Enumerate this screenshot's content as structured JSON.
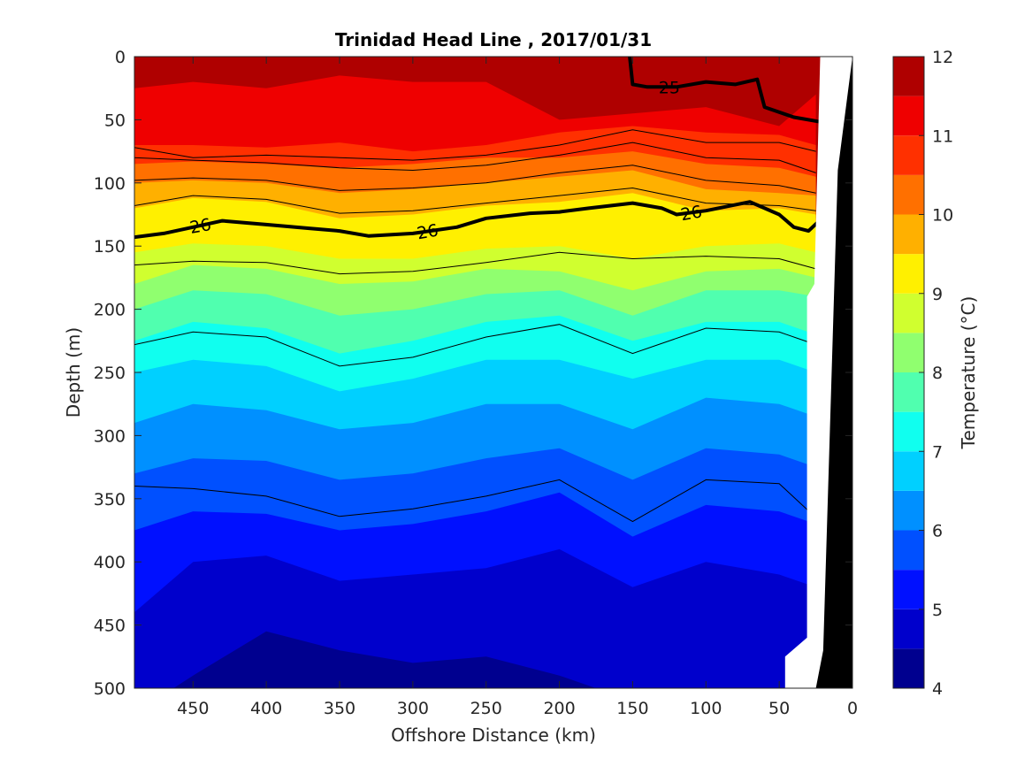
{
  "chart_data": {
    "type": "heatmap",
    "subtype": "filled-contour depth section",
    "title": "Trinidad Head Line , 2017/01/31",
    "xlabel": "Offshore Distance (km)",
    "ylabel": "Depth (m)",
    "xlim": [
      490,
      0
    ],
    "x_reversed": true,
    "ylim": [
      0,
      500
    ],
    "y_reversed": true,
    "x_ticks": [
      450,
      400,
      350,
      300,
      250,
      200,
      150,
      100,
      50,
      0
    ],
    "y_ticks": [
      0,
      50,
      100,
      150,
      200,
      250,
      300,
      350,
      400,
      450,
      500
    ],
    "colorbar": {
      "label": "Temperature (°C)",
      "range": [
        4,
        12
      ],
      "ticks": [
        4,
        5,
        6,
        7,
        8,
        9,
        10,
        11,
        12
      ],
      "levels": [
        4,
        4.5,
        5,
        5.5,
        6,
        6.5,
        7,
        7.5,
        8,
        8.5,
        9,
        9.5,
        10,
        10.5,
        11,
        11.5,
        12
      ],
      "colors": [
        "#00008f",
        "#0000cc",
        "#0010ff",
        "#0050ff",
        "#0090ff",
        "#00d0ff",
        "#10ffef",
        "#50ffaf",
        "#90ff6f",
        "#d0ff2f",
        "#fff000",
        "#ffb000",
        "#ff7000",
        "#ff3000",
        "#ef0000",
        "#af0000"
      ]
    },
    "isotherm_boundaries_depth_m": {
      "x_km": [
        490,
        450,
        400,
        350,
        300,
        250,
        200,
        150,
        100,
        50,
        25
      ],
      "t11.5": [
        25,
        20,
        25,
        15,
        20,
        20,
        50,
        45,
        40,
        55,
        30
      ],
      "t11": [
        70,
        70,
        72,
        68,
        75,
        70,
        60,
        55,
        60,
        62,
        70
      ],
      "t10.5": [
        85,
        83,
        85,
        88,
        85,
        80,
        80,
        75,
        85,
        88,
        95
      ],
      "t10": [
        100,
        98,
        100,
        108,
        105,
        100,
        95,
        90,
        105,
        108,
        110
      ],
      "t9.5": [
        120,
        112,
        115,
        128,
        125,
        118,
        115,
        108,
        122,
        120,
        125
      ],
      "t9": [
        155,
        148,
        150,
        160,
        160,
        152,
        150,
        160,
        150,
        148,
        155
      ],
      "t8.5": [
        180,
        165,
        168,
        180,
        178,
        168,
        170,
        185,
        170,
        168,
        175
      ],
      "t8": [
        200,
        185,
        188,
        205,
        200,
        188,
        185,
        205,
        185,
        185,
        190
      ],
      "t7.5": [
        225,
        210,
        215,
        235,
        225,
        210,
        205,
        225,
        210,
        210,
        220
      ],
      "t7": [
        250,
        240,
        245,
        265,
        255,
        240,
        240,
        255,
        240,
        240,
        250
      ],
      "t6.5": [
        290,
        275,
        280,
        295,
        290,
        275,
        275,
        295,
        270,
        275,
        285
      ],
      "t6": [
        330,
        318,
        320,
        335,
        330,
        318,
        310,
        335,
        310,
        315,
        325
      ],
      "t5.5": [
        375,
        360,
        362,
        375,
        370,
        360,
        345,
        380,
        355,
        360,
        370
      ],
      "t5": [
        440,
        400,
        395,
        415,
        410,
        405,
        390,
        420,
        400,
        410,
        420
      ],
      "t4.5": [
        520,
        490,
        455,
        470,
        480,
        475,
        490,
        510,
        500,
        500,
        500
      ]
    },
    "density_contours": [
      {
        "label": "25",
        "x_km": [
          152,
          150,
          140,
          120,
          100,
          80,
          65,
          60,
          40,
          20
        ],
        "depth_m": [
          0,
          22,
          24,
          24,
          20,
          22,
          18,
          40,
          48,
          52
        ]
      },
      {
        "label": "26",
        "x_km": [
          490,
          470,
          450,
          430,
          400,
          370,
          350,
          330,
          300,
          270,
          250,
          220,
          200,
          180,
          150,
          130,
          120,
          100,
          70,
          50,
          40,
          30,
          20
        ],
        "depth_m": [
          143,
          140,
          135,
          130,
          133,
          136,
          138,
          142,
          140,
          135,
          128,
          124,
          123,
          120,
          116,
          120,
          125,
          122,
          115,
          125,
          135,
          138,
          127
        ]
      }
    ],
    "thin_contours_depth_m": {
      "x_km": [
        490,
        450,
        400,
        350,
        300,
        250,
        200,
        150,
        100,
        50,
        25
      ],
      "c1": [
        72,
        80,
        78,
        80,
        82,
        78,
        70,
        58,
        68,
        68,
        75
      ],
      "c2": [
        80,
        82,
        84,
        88,
        90,
        86,
        78,
        68,
        80,
        82,
        92
      ],
      "c3": [
        98,
        96,
        98,
        106,
        104,
        100,
        92,
        86,
        98,
        102,
        108
      ],
      "c4": [
        118,
        110,
        113,
        124,
        122,
        116,
        110,
        104,
        116,
        118,
        122
      ],
      "c5": [
        165,
        162,
        163,
        172,
        170,
        163,
        155,
        160,
        158,
        160,
        168
      ],
      "c6": [
        228,
        218,
        222,
        245,
        238,
        222,
        212,
        235,
        215,
        218,
        228
      ],
      "c7": [
        340,
        342,
        348,
        364,
        358,
        348,
        335,
        368,
        335,
        338,
        365
      ]
    },
    "bathymetry": {
      "note_visible": "black seafloor wedge at nearshore end",
      "x_km": [
        25,
        20,
        10,
        0
      ],
      "top_depth_m": [
        500,
        470,
        90,
        0
      ]
    }
  }
}
